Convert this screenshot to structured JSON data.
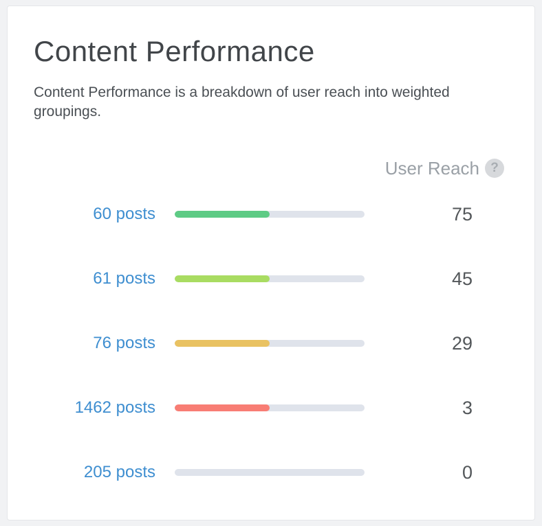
{
  "card": {
    "title": "Content Performance",
    "description": "Content Performance is a breakdown of user reach into weighted groupings."
  },
  "header": {
    "label": "User Reach",
    "help_icon_glyph": "?"
  },
  "rows": [
    {
      "posts_label": "60 posts",
      "reach": "75",
      "color": "#5ecb85",
      "fill_width": "50%"
    },
    {
      "posts_label": "61 posts",
      "reach": "45",
      "color": "#a9dc62",
      "fill_width": "50%"
    },
    {
      "posts_label": "76 posts",
      "reach": "29",
      "color": "#e9c262",
      "fill_width": "50%"
    },
    {
      "posts_label": "1462 posts",
      "reach": "3",
      "color": "#f87d74",
      "fill_width": "50%"
    },
    {
      "posts_label": "205 posts",
      "reach": "0",
      "color": "transparent",
      "fill_width": "0%"
    }
  ],
  "colors": {
    "page_background": "#f1f2f4",
    "card_background": "#ffffff",
    "card_border": "#e4e6e9",
    "title_text": "#414549",
    "link_blue": "#3e8ed0",
    "value_text": "#53575a",
    "header_gray": "#9aa0a6",
    "bar_track": "#dfe3eb",
    "bar_green": "#5ecb85",
    "bar_light_green": "#a9dc62",
    "bar_amber": "#e9c262",
    "bar_red": "#f87d74",
    "help_circle": "#d7d9dc"
  },
  "chart_data": {
    "type": "bar",
    "orientation": "horizontal",
    "title": "Content Performance",
    "subtitle": "Content Performance is a breakdown of user reach into weighted groupings.",
    "value_column_label": "User Reach",
    "categories": [
      "60 posts",
      "61 posts",
      "76 posts",
      "1462 posts",
      "205 posts"
    ],
    "values": [
      75,
      45,
      29,
      3,
      0
    ],
    "bar_fill_percent": [
      50,
      50,
      50,
      50,
      0
    ],
    "bar_colors": [
      "#5ecb85",
      "#a9dc62",
      "#e9c262",
      "#f87d74",
      "none"
    ],
    "grid": false,
    "legend": "none"
  }
}
